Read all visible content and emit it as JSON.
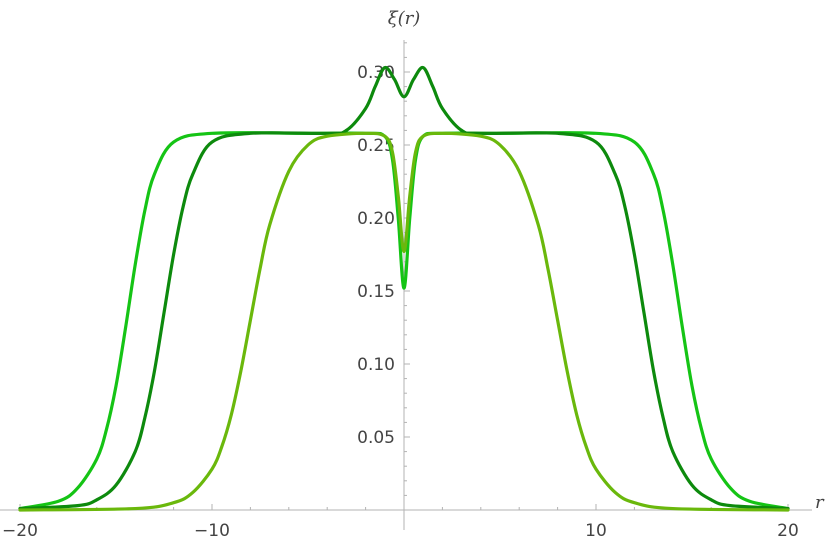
{
  "chart_data": {
    "type": "line",
    "title": "",
    "xlabel": "r",
    "ylabel": "ξ(r)",
    "xlim": [
      -20,
      20
    ],
    "ylim": [
      0,
      0.32
    ],
    "grid": false,
    "x_ticks": [
      -20,
      -10,
      10,
      20
    ],
    "x_tick_labels": [
      "−20",
      "−10",
      "10",
      "20"
    ],
    "y_ticks": [
      0.05,
      0.1,
      0.15,
      0.2,
      0.25,
      0.3
    ],
    "y_tick_labels": [
      "0.05",
      "0.10",
      "0.15",
      "0.20",
      "0.25",
      "0.30"
    ],
    "series": [
      {
        "color": "#15c415",
        "x": [
          -20,
          -18,
          -17,
          -16,
          -15.5,
          -15,
          -14.5,
          -14,
          -13.5,
          -13,
          -12,
          -10,
          -5,
          -2,
          -1,
          -0.6,
          -0.3,
          0,
          0.3,
          0.6,
          1,
          2,
          5,
          10,
          12,
          13,
          13.5,
          14,
          14.5,
          15,
          15.5,
          16,
          17,
          18,
          20
        ],
        "y": [
          0.001,
          0.006,
          0.015,
          0.035,
          0.055,
          0.085,
          0.125,
          0.168,
          0.205,
          0.23,
          0.252,
          0.258,
          0.258,
          0.258,
          0.256,
          0.24,
          0.2,
          0.152,
          0.2,
          0.24,
          0.256,
          0.258,
          0.258,
          0.258,
          0.252,
          0.23,
          0.205,
          0.168,
          0.125,
          0.085,
          0.055,
          0.035,
          0.015,
          0.006,
          0.001
        ]
      },
      {
        "color": "#0d8a0d",
        "x": [
          -20,
          -17,
          -16,
          -15,
          -14,
          -13.5,
          -13,
          -12.5,
          -12,
          -11.5,
          -11,
          -10,
          -8,
          -4,
          -3,
          -2,
          -1.5,
          -1,
          -0.5,
          0,
          0.5,
          1,
          1.5,
          2,
          3,
          4,
          8,
          10,
          11,
          11.5,
          12,
          12.5,
          13,
          13.5,
          14,
          15,
          16,
          17,
          20
        ],
        "y": [
          0.001,
          0.003,
          0.007,
          0.017,
          0.04,
          0.063,
          0.095,
          0.135,
          0.175,
          0.208,
          0.23,
          0.252,
          0.258,
          0.258,
          0.26,
          0.275,
          0.29,
          0.303,
          0.295,
          0.283,
          0.295,
          0.303,
          0.29,
          0.275,
          0.26,
          0.258,
          0.258,
          0.252,
          0.23,
          0.208,
          0.175,
          0.135,
          0.095,
          0.063,
          0.04,
          0.017,
          0.007,
          0.003,
          0.001
        ]
      },
      {
        "color": "#6ab80c",
        "x": [
          -20,
          -14,
          -12,
          -11,
          -10,
          -9.5,
          -9,
          -8.5,
          -8,
          -7.5,
          -7,
          -6,
          -5,
          -4,
          -2,
          -1,
          -0.6,
          -0.3,
          0,
          0.3,
          0.6,
          1,
          2,
          4,
          5,
          6,
          7,
          7.5,
          8,
          8.5,
          9,
          9.5,
          10,
          11,
          12,
          14,
          20
        ],
        "y": [
          0,
          0.001,
          0.005,
          0.012,
          0.028,
          0.043,
          0.065,
          0.095,
          0.13,
          0.165,
          0.195,
          0.232,
          0.25,
          0.256,
          0.258,
          0.256,
          0.245,
          0.215,
          0.177,
          0.215,
          0.245,
          0.256,
          0.258,
          0.256,
          0.25,
          0.232,
          0.195,
          0.165,
          0.13,
          0.095,
          0.065,
          0.043,
          0.028,
          0.012,
          0.005,
          0.001,
          0
        ]
      }
    ]
  }
}
